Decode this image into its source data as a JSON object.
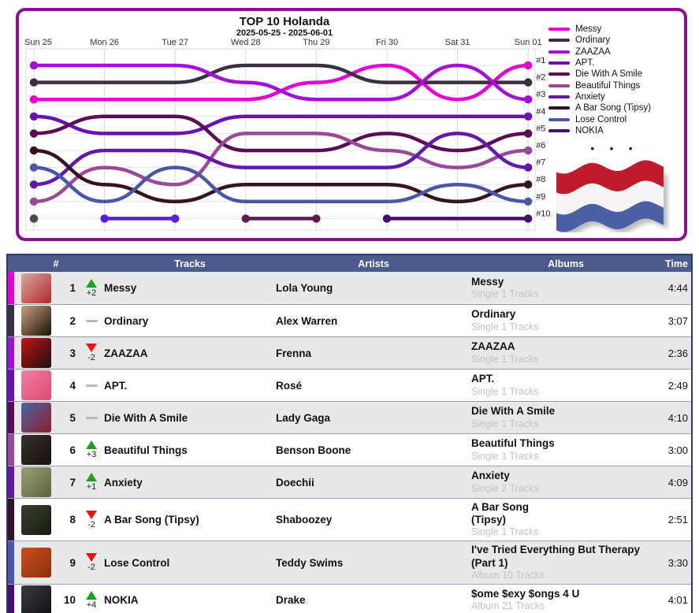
{
  "chart_data": {
    "type": "line",
    "title": "TOP 10 Holanda",
    "subtitle": "2025-05-25 - 2025-06-01",
    "x": [
      "Sun 25",
      "Mon 26",
      "Tue 27",
      "Wed 28",
      "Thu 29",
      "Fri 30",
      "Sat 31",
      "Sun 01"
    ],
    "ylabel": "rank",
    "yrange": [
      1,
      10
    ],
    "grid": true,
    "legend_position": "top-right",
    "rank_labels": [
      "#1",
      "#2",
      "#3",
      "#4",
      "#5",
      "#6",
      "#7",
      "#8",
      "#9",
      "#10"
    ],
    "series": [
      {
        "name": "Messy",
        "color": "#E800D2",
        "values": [
          3,
          3,
          3,
          3,
          2,
          1,
          3,
          1
        ]
      },
      {
        "name": "Ordinary",
        "color": "#3B2E40",
        "values": [
          2,
          2,
          2,
          1,
          1,
          2,
          2,
          2
        ]
      },
      {
        "name": "ZAAZAA",
        "color": "#A50DD8",
        "values": [
          1,
          1,
          1,
          2,
          3,
          3,
          1,
          3
        ]
      },
      {
        "name": "APT.",
        "color": "#6A10B4",
        "values": [
          4,
          5,
          5,
          4,
          4,
          4,
          4,
          4
        ]
      },
      {
        "name": "Die With A Smile",
        "color": "#5C0A52",
        "values": [
          5,
          4,
          4,
          6,
          6,
          5,
          6,
          5
        ]
      },
      {
        "name": "Beautiful Things",
        "color": "#9A4898",
        "values": [
          9,
          7,
          8,
          5,
          5,
          6,
          7,
          6
        ]
      },
      {
        "name": "Anxiety",
        "color": "#6318AC",
        "values": [
          8,
          6,
          6,
          7,
          7,
          7,
          5,
          7
        ]
      },
      {
        "name": "A Bar Song (Tipsy)",
        "color": "#361223",
        "values": [
          6,
          8,
          9,
          8,
          8,
          8,
          9,
          8
        ]
      },
      {
        "name": "Lose Control",
        "color": "#4A57A9",
        "values": [
          7,
          9,
          7,
          9,
          9,
          9,
          8,
          9
        ]
      },
      {
        "name": "NOKIA",
        "color": "#460E6E",
        "values": [
          null,
          null,
          null,
          null,
          null,
          10,
          10,
          10
        ]
      }
    ],
    "extra_series": [
      {
        "name": "former-entry-1",
        "color": "#4A4A4A",
        "values": [
          10,
          null,
          null,
          null,
          null,
          null,
          null,
          null
        ]
      },
      {
        "name": "former-entry-2",
        "color": "#5A1FD6",
        "values": [
          null,
          10,
          10,
          null,
          null,
          null,
          null,
          null
        ]
      },
      {
        "name": "former-entry-3",
        "color": "#5C1E50",
        "values": [
          null,
          null,
          null,
          10,
          10,
          null,
          null,
          null
        ]
      }
    ],
    "legend_more": "• • •"
  },
  "flag": {
    "name": "netherlands-flag",
    "red": "#C01B2D",
    "white": "#F6F4F4",
    "blue": "#4B5FA5"
  },
  "table": {
    "headers": [
      "#",
      "Tracks",
      "Artists",
      "Albums",
      "Time"
    ],
    "header_bg": "#4C5B8E",
    "rows": [
      {
        "rank": "1",
        "change_dir": "up",
        "change": "+2",
        "track": "Messy",
        "artist": "Lola Young",
        "album": "Messy",
        "album_info": "Single 1 Tracks",
        "time": "4:44",
        "color": "#E800D2",
        "art": [
          "#d9a8a4",
          "#b02828"
        ]
      },
      {
        "rank": "2",
        "change_dir": "same",
        "change": "",
        "track": "Ordinary",
        "artist": "Alex Warren",
        "album": "Ordinary",
        "album_info": "Single 1 Tracks",
        "time": "3:07",
        "color": "#3B2E40",
        "art": [
          "#caa27a",
          "#171008"
        ]
      },
      {
        "rank": "3",
        "change_dir": "down",
        "change": "-2",
        "track": "ZAAZAA",
        "artist": "Frenna",
        "album": "ZAAZAA",
        "album_info": "Single 1 Tracks",
        "time": "2:36",
        "color": "#A50DD8",
        "art": [
          "#c01818",
          "#1c0c0c"
        ]
      },
      {
        "rank": "4",
        "change_dir": "same",
        "change": "",
        "track": "APT.",
        "artist": "Rosé",
        "album": "APT.",
        "album_info": "Single 1 Tracks",
        "time": "2:49",
        "color": "#6A10B4",
        "art": [
          "#f07fa8",
          "#e0486e"
        ]
      },
      {
        "rank": "5",
        "change_dir": "same",
        "change": "",
        "track": "Die With A Smile",
        "artist": "Lady Gaga",
        "album": "Die With A Smile",
        "album_info": "Single 1 Tracks",
        "time": "4:10",
        "color": "#5C0A52",
        "art": [
          "#4a63a8",
          "#8c1f2a"
        ]
      },
      {
        "rank": "6",
        "change_dir": "up",
        "change": "+3",
        "track": "Beautiful Things",
        "artist": "Benson Boone",
        "album": "Beautiful Things",
        "album_info": "Single 1 Tracks",
        "time": "3:00",
        "color": "#9A4898",
        "art": [
          "#3a322a",
          "#14100c"
        ]
      },
      {
        "rank": "7",
        "change_dir": "up",
        "change": "+1",
        "track": "Anxiety",
        "artist": "Doechii",
        "album": "Anxiety",
        "album_info": "Single 2 Tracks",
        "time": "4:09",
        "color": "#6318AC",
        "art": [
          "#9aa072",
          "#5c6242"
        ]
      },
      {
        "rank": "8",
        "change_dir": "down",
        "change": "-2",
        "track": "A Bar Song (Tipsy)",
        "artist": "Shaboozey",
        "album": "A Bar Song\n(Tipsy)",
        "album_info": "Single 1 Tracks",
        "time": "2:51",
        "color": "#361223",
        "art": [
          "#39402e",
          "#171a10"
        ]
      },
      {
        "rank": "9",
        "change_dir": "down",
        "change": "-2",
        "track": "Lose Control",
        "artist": "Teddy Swims",
        "album": "I've Tried Everything But Therapy\n(Part 1)",
        "album_info": "Album 10 Tracks",
        "time": "3:30",
        "color": "#4A57A9",
        "art": [
          "#cc4f1c",
          "#8a2f0e"
        ]
      },
      {
        "rank": "10",
        "change_dir": "up",
        "change": "+4",
        "track": "NOKIA",
        "artist": "Drake",
        "album": "$ome $exy $ongs 4 U",
        "album_info": "Album 21 Tracks",
        "time": "4:01",
        "color": "#460E6E",
        "art": [
          "#3c3c40",
          "#101014"
        ]
      }
    ]
  }
}
